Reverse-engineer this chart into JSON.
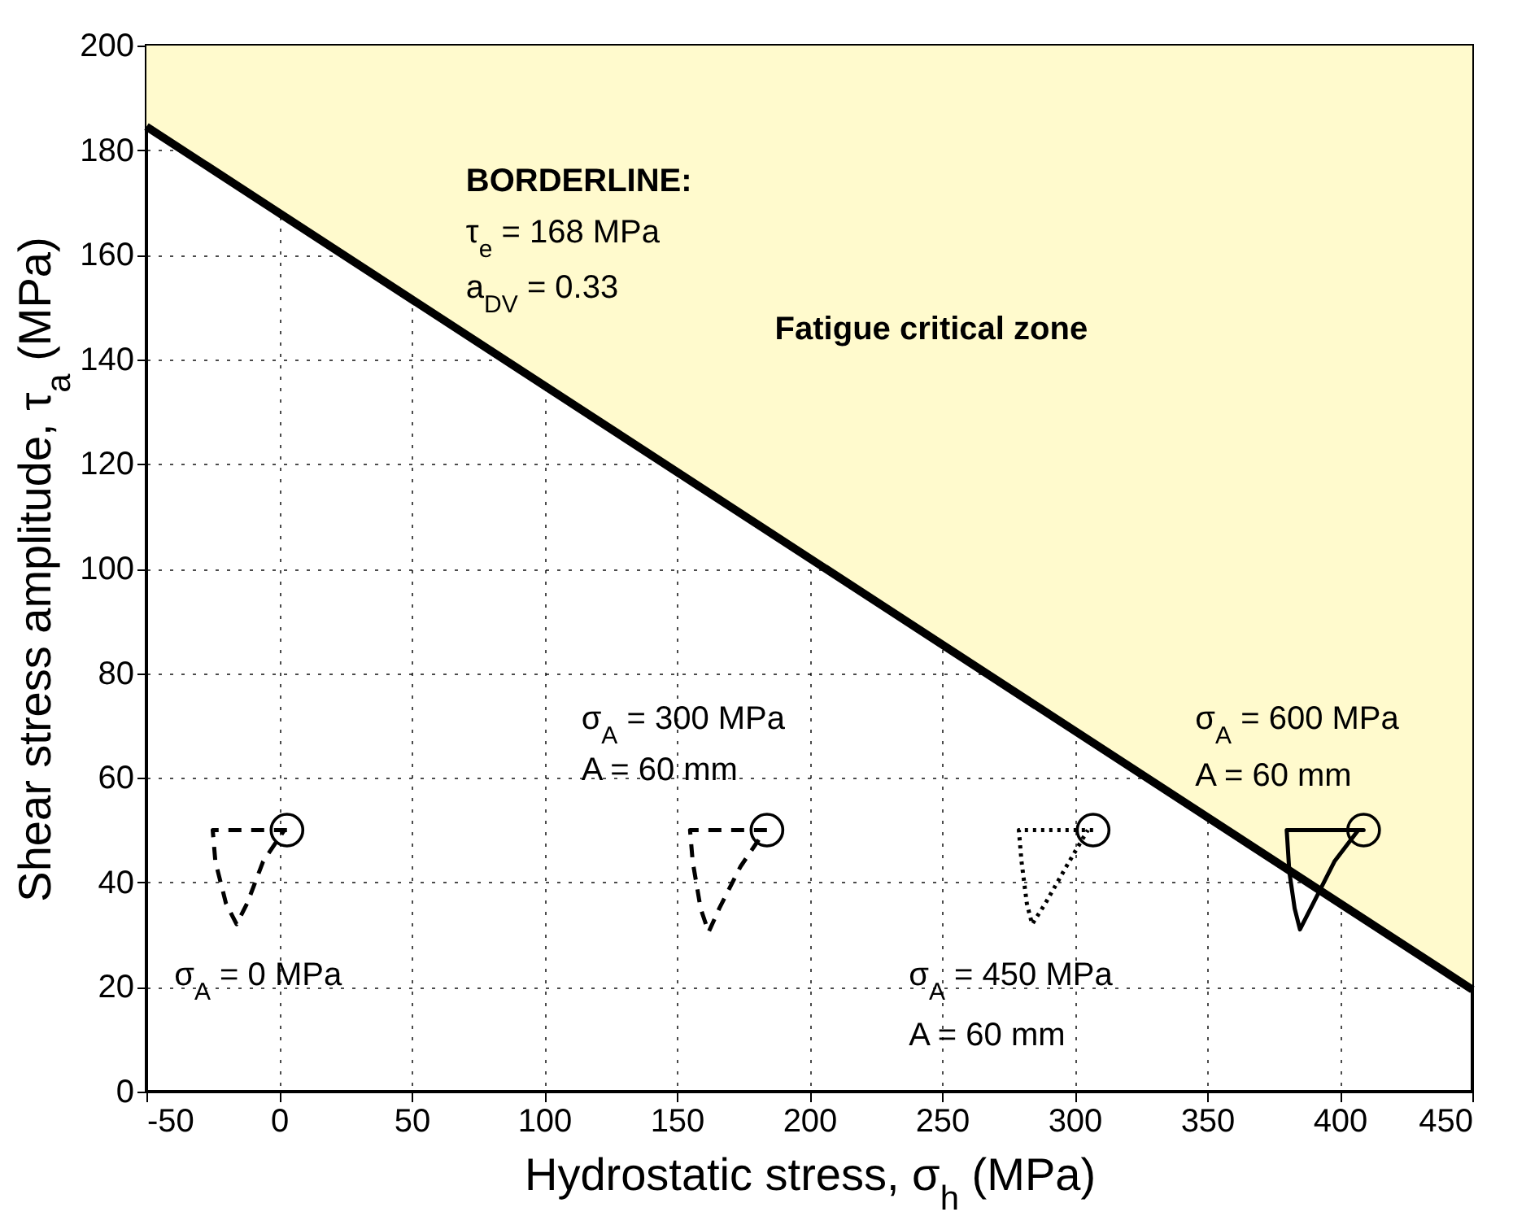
{
  "chart_data": {
    "type": "line",
    "xlabel": "Hydrostatic stress, σ$_{h}$ (MPa)",
    "ylabel": "Shear stress amplitude, τ$_{a}$ (MPa)",
    "xlim": [
      -50,
      450
    ],
    "xticks": [
      -50,
      0,
      50,
      100,
      150,
      200,
      250,
      300,
      350,
      400,
      450
    ],
    "ylim": [
      0,
      200
    ],
    "yticks": [
      0,
      20,
      40,
      60,
      80,
      100,
      120,
      140,
      160,
      180,
      200
    ],
    "grid": true,
    "series": [
      {
        "color": "#000000",
        "line_style": "solid",
        "x": [
          -50,
          450
        ],
        "values": [
          184.5,
          19.5
        ],
        "lower": [
          184.5,
          19.5
        ],
        "upper": [
          200,
          200
        ]
      },
      {
        "color": "#000000",
        "line_style": "dashed",
        "x": [
          3,
          -25,
          -24,
          -20,
          -16,
          -12,
          -6,
          2
        ],
        "values": [
          50,
          50,
          44,
          36,
          32,
          36,
          44,
          50
        ]
      },
      {
        "color": "#000000",
        "line_style": "dashed",
        "x": [
          184,
          155,
          156,
          159,
          162,
          166,
          174,
          182
        ],
        "values": [
          50,
          50,
          44,
          35,
          30.5,
          35,
          43,
          49
        ]
      },
      {
        "color": "#000000",
        "line_style": "dotted",
        "x": [
          307,
          279,
          280,
          282,
          284,
          289,
          298,
          305
        ],
        "values": [
          50,
          50,
          44,
          36,
          32,
          36,
          44,
          50
        ]
      },
      {
        "color": "#000000",
        "line_style": "solid",
        "x": [
          380,
          409,
          380,
          381,
          383,
          385,
          390,
          398,
          407
        ],
        "values": [
          50,
          50,
          50,
          42,
          35,
          31,
          36,
          44,
          50
        ]
      },
      {
        "type": "scatter",
        "color": "#000000",
        "marker": "circle",
        "x": [
          3,
          184,
          307,
          409
        ],
        "values": [
          50,
          50,
          50,
          50
        ]
      }
    ],
    "annotations": [
      "BORDERLINE:",
      "τ$_{e}$ = 168 MPa",
      "a$_{DV}$ = 0.33",
      "Fatigue critical zone",
      "σ$_{A}$ = 300 MPa",
      "A = 60 mm",
      "σ$_{A}$ = 600 MPa",
      "A = 60 mm",
      "σ$_{A}$ = 0 MPa",
      "σ$_{A}$ = 450 MPa",
      "A = 60 mm"
    ]
  }
}
